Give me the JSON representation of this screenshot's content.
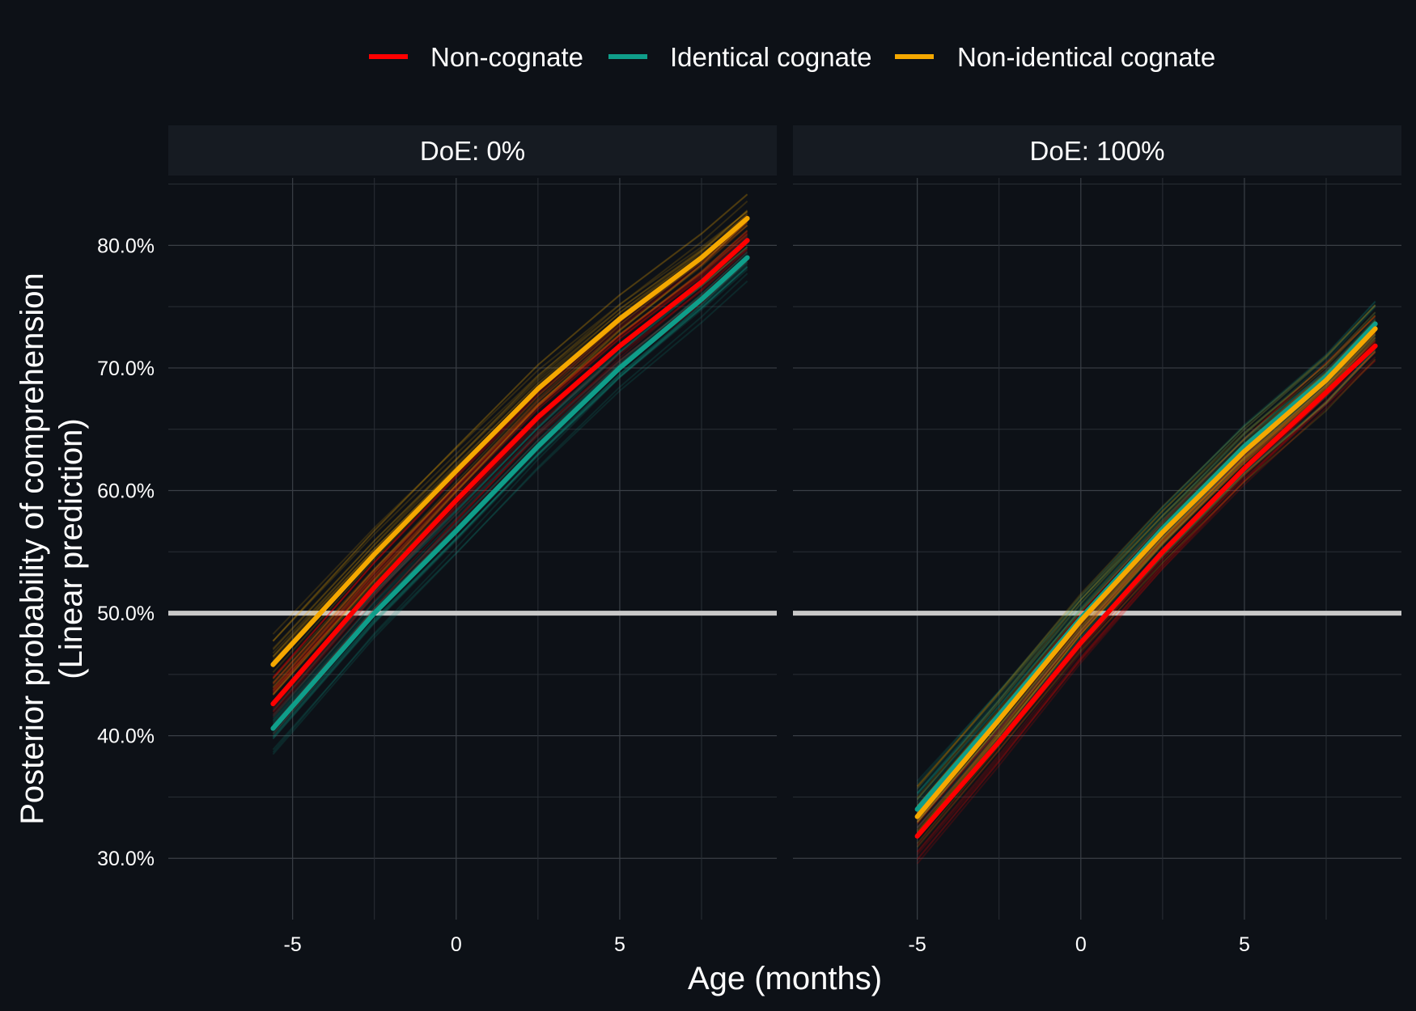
{
  "chart_data": {
    "type": "line",
    "xlabel": "Age (months)",
    "ylabel_lines": [
      "Posterior probability of comprehension",
      "(Linear prediction)"
    ],
    "ylim": [
      0.25,
      0.855
    ],
    "y_ticks": [
      0.3,
      0.4,
      0.5,
      0.6,
      0.7,
      0.8
    ],
    "y_tick_labels": [
      "30.0%",
      "40.0%",
      "50.0%",
      "60.0%",
      "70.0%",
      "80.0%"
    ],
    "xlim": [
      -8.8,
      9.8
    ],
    "x_ticks": [
      -5,
      0,
      5
    ],
    "x_tick_labels": [
      "-5",
      "0",
      "5"
    ],
    "x_minor_ticks": [
      -2.5,
      2.5,
      7.5
    ],
    "reference_line": 0.5,
    "grid": true,
    "legend_position": "top",
    "legend": [
      {
        "label": "Non-cognate",
        "color": "#ff0000"
      },
      {
        "label": "Identical cognate",
        "color": "#0f9e8a"
      },
      {
        "label": "Non-identical cognate",
        "color": "#f5a800"
      }
    ],
    "panels": [
      {
        "title": "DoE: 0%",
        "x": [
          -5.6,
          -2.5,
          0,
          2.5,
          5,
          7.5,
          8.9
        ],
        "series": [
          {
            "name": "Non-cognate",
            "color": "#ff0000",
            "values": [
              0.426,
              0.521,
              0.592,
              0.66,
              0.718,
              0.77,
              0.804
            ]
          },
          {
            "name": "Identical cognate",
            "color": "#0f9e8a",
            "values": [
              0.406,
              0.5,
              0.567,
              0.636,
              0.7,
              0.756,
              0.79
            ]
          },
          {
            "name": "Non-identical cognate",
            "color": "#f5a800",
            "values": [
              0.458,
              0.548,
              0.616,
              0.683,
              0.74,
              0.79,
              0.822
            ]
          }
        ]
      },
      {
        "title": "DoE: 100%",
        "x": [
          -5.0,
          -2.5,
          0,
          2.5,
          5,
          7.5,
          9.0
        ],
        "series": [
          {
            "name": "Non-cognate",
            "color": "#ff0000",
            "values": [
              0.318,
              0.395,
              0.476,
              0.55,
              0.618,
              0.68,
              0.718
            ]
          },
          {
            "name": "Identical cognate",
            "color": "#0f9e8a",
            "values": [
              0.34,
              0.417,
              0.496,
              0.569,
              0.636,
              0.693,
              0.736
            ]
          },
          {
            "name": "Non-identical cognate",
            "color": "#f5a800",
            "values": [
              0.334,
              0.413,
              0.494,
              0.566,
              0.632,
              0.69,
              0.732
            ]
          }
        ]
      }
    ]
  }
}
